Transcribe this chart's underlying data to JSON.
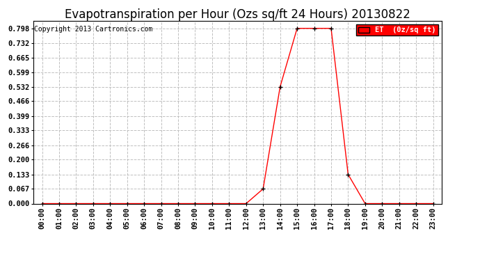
{
  "title": "Evapotranspiration per Hour (Ozs sq/ft 24 Hours) 20130822",
  "copyright": "Copyright 2013 Cartronics.com",
  "legend_label": "ET  (0z/sq ft)",
  "legend_bg": "#ff0000",
  "legend_text_color": "#ffffff",
  "y_ticks": [
    0.0,
    0.067,
    0.133,
    0.2,
    0.266,
    0.333,
    0.399,
    0.466,
    0.532,
    0.599,
    0.665,
    0.732,
    0.798
  ],
  "ylim": [
    0.0,
    0.832
  ],
  "x_hours": [
    0,
    1,
    2,
    3,
    4,
    5,
    6,
    7,
    8,
    9,
    10,
    11,
    12,
    13,
    14,
    15,
    16,
    17,
    18,
    19,
    20,
    21,
    22,
    23
  ],
  "x_labels": [
    "00:00",
    "01:00",
    "02:00",
    "03:00",
    "04:00",
    "05:00",
    "06:00",
    "07:00",
    "08:00",
    "09:00",
    "10:00",
    "11:00",
    "12:00",
    "13:00",
    "14:00",
    "15:00",
    "16:00",
    "17:00",
    "18:00",
    "19:00",
    "20:00",
    "21:00",
    "22:00",
    "23:00"
  ],
  "y_values": [
    0.0,
    0.0,
    0.0,
    0.0,
    0.0,
    0.0,
    0.0,
    0.0,
    0.0,
    0.0,
    0.0,
    0.0,
    0.0,
    0.067,
    0.532,
    0.798,
    0.798,
    0.798,
    0.133,
    0.0,
    0.0,
    0.0,
    0.0,
    0.0
  ],
  "line_color": "#ff0000",
  "marker": "+",
  "marker_color": "#000000",
  "marker_size": 4,
  "grid_color": "#c0c0c0",
  "grid_style": "--",
  "bg_color": "#ffffff",
  "title_fontsize": 12,
  "tick_fontsize": 7.5,
  "copyright_fontsize": 7
}
